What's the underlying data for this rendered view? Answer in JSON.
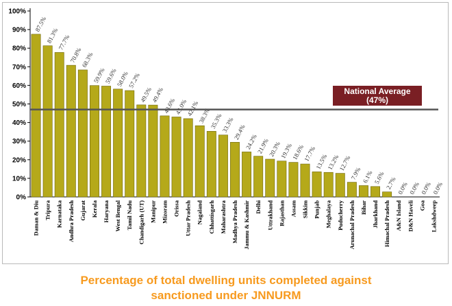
{
  "chart_data": {
    "type": "bar",
    "categories": [
      "Daman & Diu",
      "Tripura",
      "Karnataka",
      "Andhra Pradesh",
      "Gujarat",
      "Kerala",
      "Haryana",
      "West Bengal",
      "Tamil Nadu",
      "Chandigarh (UT)",
      "Manipur",
      "Mizoram",
      "Orissa",
      "Uttar Pradesh",
      "Nagaland",
      "Chhattisgarh",
      "Maharashtra",
      "Madhya Pradesh",
      "Jammu & Kashmir",
      "Delhi",
      "Uttrakhand",
      "Rajasthan",
      "Assam",
      "Sikkim",
      "Punjab",
      "Meghalaya",
      "Puducherry",
      "Arunachal Pradesh",
      "Bihar",
      "Jharkhand",
      "Himachal Pradesh",
      "A&N Island",
      "D&N Haveli",
      "Goa",
      "Lakshdweep"
    ],
    "values": [
      87.5,
      81.3,
      77.7,
      70.8,
      68.3,
      59.9,
      59.6,
      58.0,
      57.2,
      49.5,
      49.4,
      43.6,
      43.0,
      42.1,
      38.3,
      35.3,
      33.3,
      29.4,
      24.2,
      21.9,
      20.3,
      19.3,
      18.6,
      17.7,
      13.5,
      13.2,
      12.7,
      7.9,
      6.1,
      5.6,
      2.7,
      0.0,
      0.0,
      0.0,
      0.0
    ],
    "data_labels": [
      "87.5%",
      "81.3%",
      "77.7%",
      "70.8%",
      "68.3%",
      "59.9%",
      "59.6%",
      "58.0%",
      "57.2%",
      "49.5%",
      "49.4%",
      "43.6%",
      "43.0%",
      "42.1%",
      "38.3%",
      "35.3%",
      "33.3%",
      "29.4%",
      "24.2%",
      "21.9%",
      "20.3%",
      "19.3%",
      "18.6%",
      "17.7%",
      "13.5%",
      "13.2%",
      "12.7%",
      "7.9%",
      "6.1%",
      "5.6%",
      "2.7%",
      "0.0%",
      "0.0%",
      "0.0%",
      "0.0%"
    ],
    "yticks": [
      "0%",
      "10%",
      "20%",
      "30%",
      "40%",
      "50%",
      "60%",
      "70%",
      "80%",
      "90%",
      "100%"
    ],
    "ylim": [
      0,
      100
    ],
    "reference_line": {
      "value": 47,
      "label_line1": "National Average",
      "label_line2": "(47%)"
    },
    "grid": false,
    "colors": {
      "bar": "#b5a91a",
      "bar_edge": "#6d650e",
      "reference_line": "#555555",
      "reference_box": "#7a1f24"
    }
  },
  "caption": {
    "line1": "Percentage of total dwelling units completed against",
    "line2": "sanctioned under JNNURM"
  }
}
